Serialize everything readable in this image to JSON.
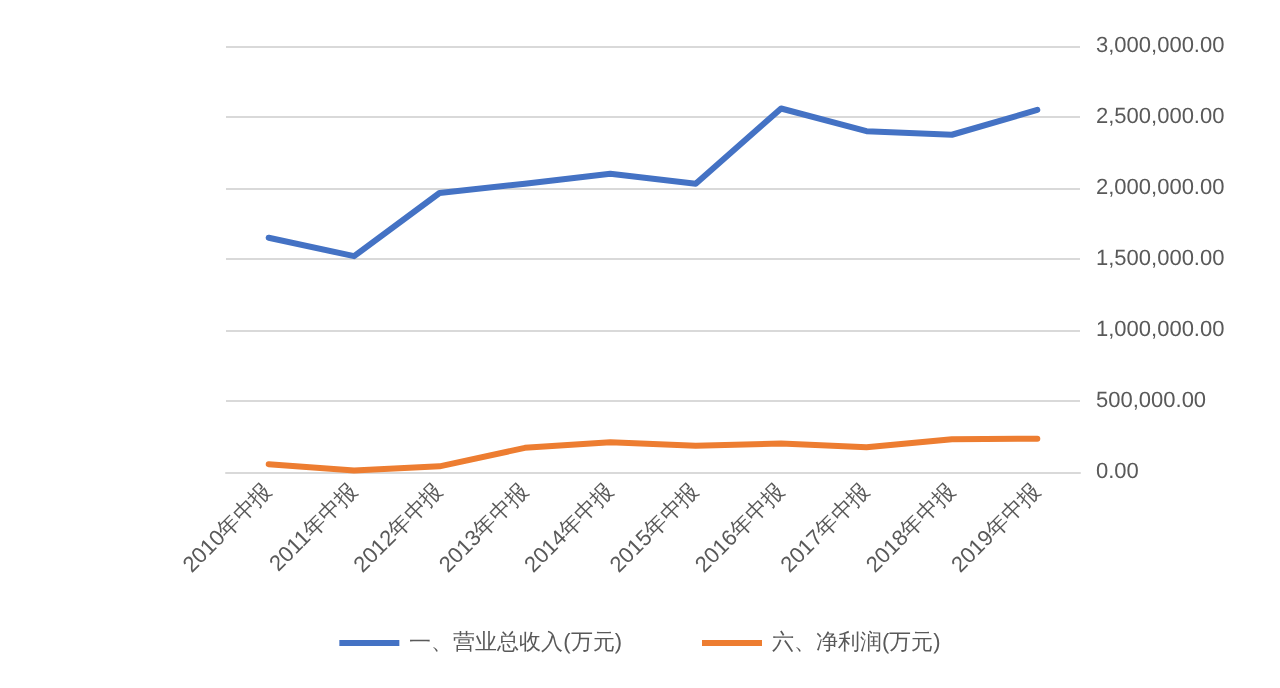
{
  "chart_data": {
    "type": "line",
    "categories": [
      "2010年中报",
      "2011年中报",
      "2012年中报",
      "2013年中报",
      "2014年中报",
      "2015年中报",
      "2016年中报",
      "2017年中报",
      "2018年中报",
      "2019年中报"
    ],
    "series": [
      {
        "name": "一、营业总收入(万元)",
        "color": "#4472c4",
        "values": [
          1650000,
          1520000,
          1965000,
          2030000,
          2100000,
          2030000,
          2560000,
          2400000,
          2375000,
          2550000
        ]
      },
      {
        "name": "六、净利润(万元)",
        "color": "#ed7d31",
        "values": [
          55000,
          10000,
          40000,
          170000,
          210000,
          185000,
          200000,
          175000,
          230000,
          235000
        ]
      }
    ],
    "ylim": [
      0,
      3000000
    ],
    "yticks": [
      {
        "value": 0,
        "label": "0.00"
      },
      {
        "value": 500000,
        "label": "500,000.00"
      },
      {
        "value": 1000000,
        "label": "1,000,000.00"
      },
      {
        "value": 1500000,
        "label": "1,500,000.00"
      },
      {
        "value": 2000000,
        "label": "2,000,000.00"
      },
      {
        "value": 2500000,
        "label": "2,500,000.00"
      },
      {
        "value": 3000000,
        "label": "3,000,000.00"
      }
    ],
    "grid": "y",
    "legend": "bottom",
    "marker": "none",
    "line_style": "solid"
  }
}
